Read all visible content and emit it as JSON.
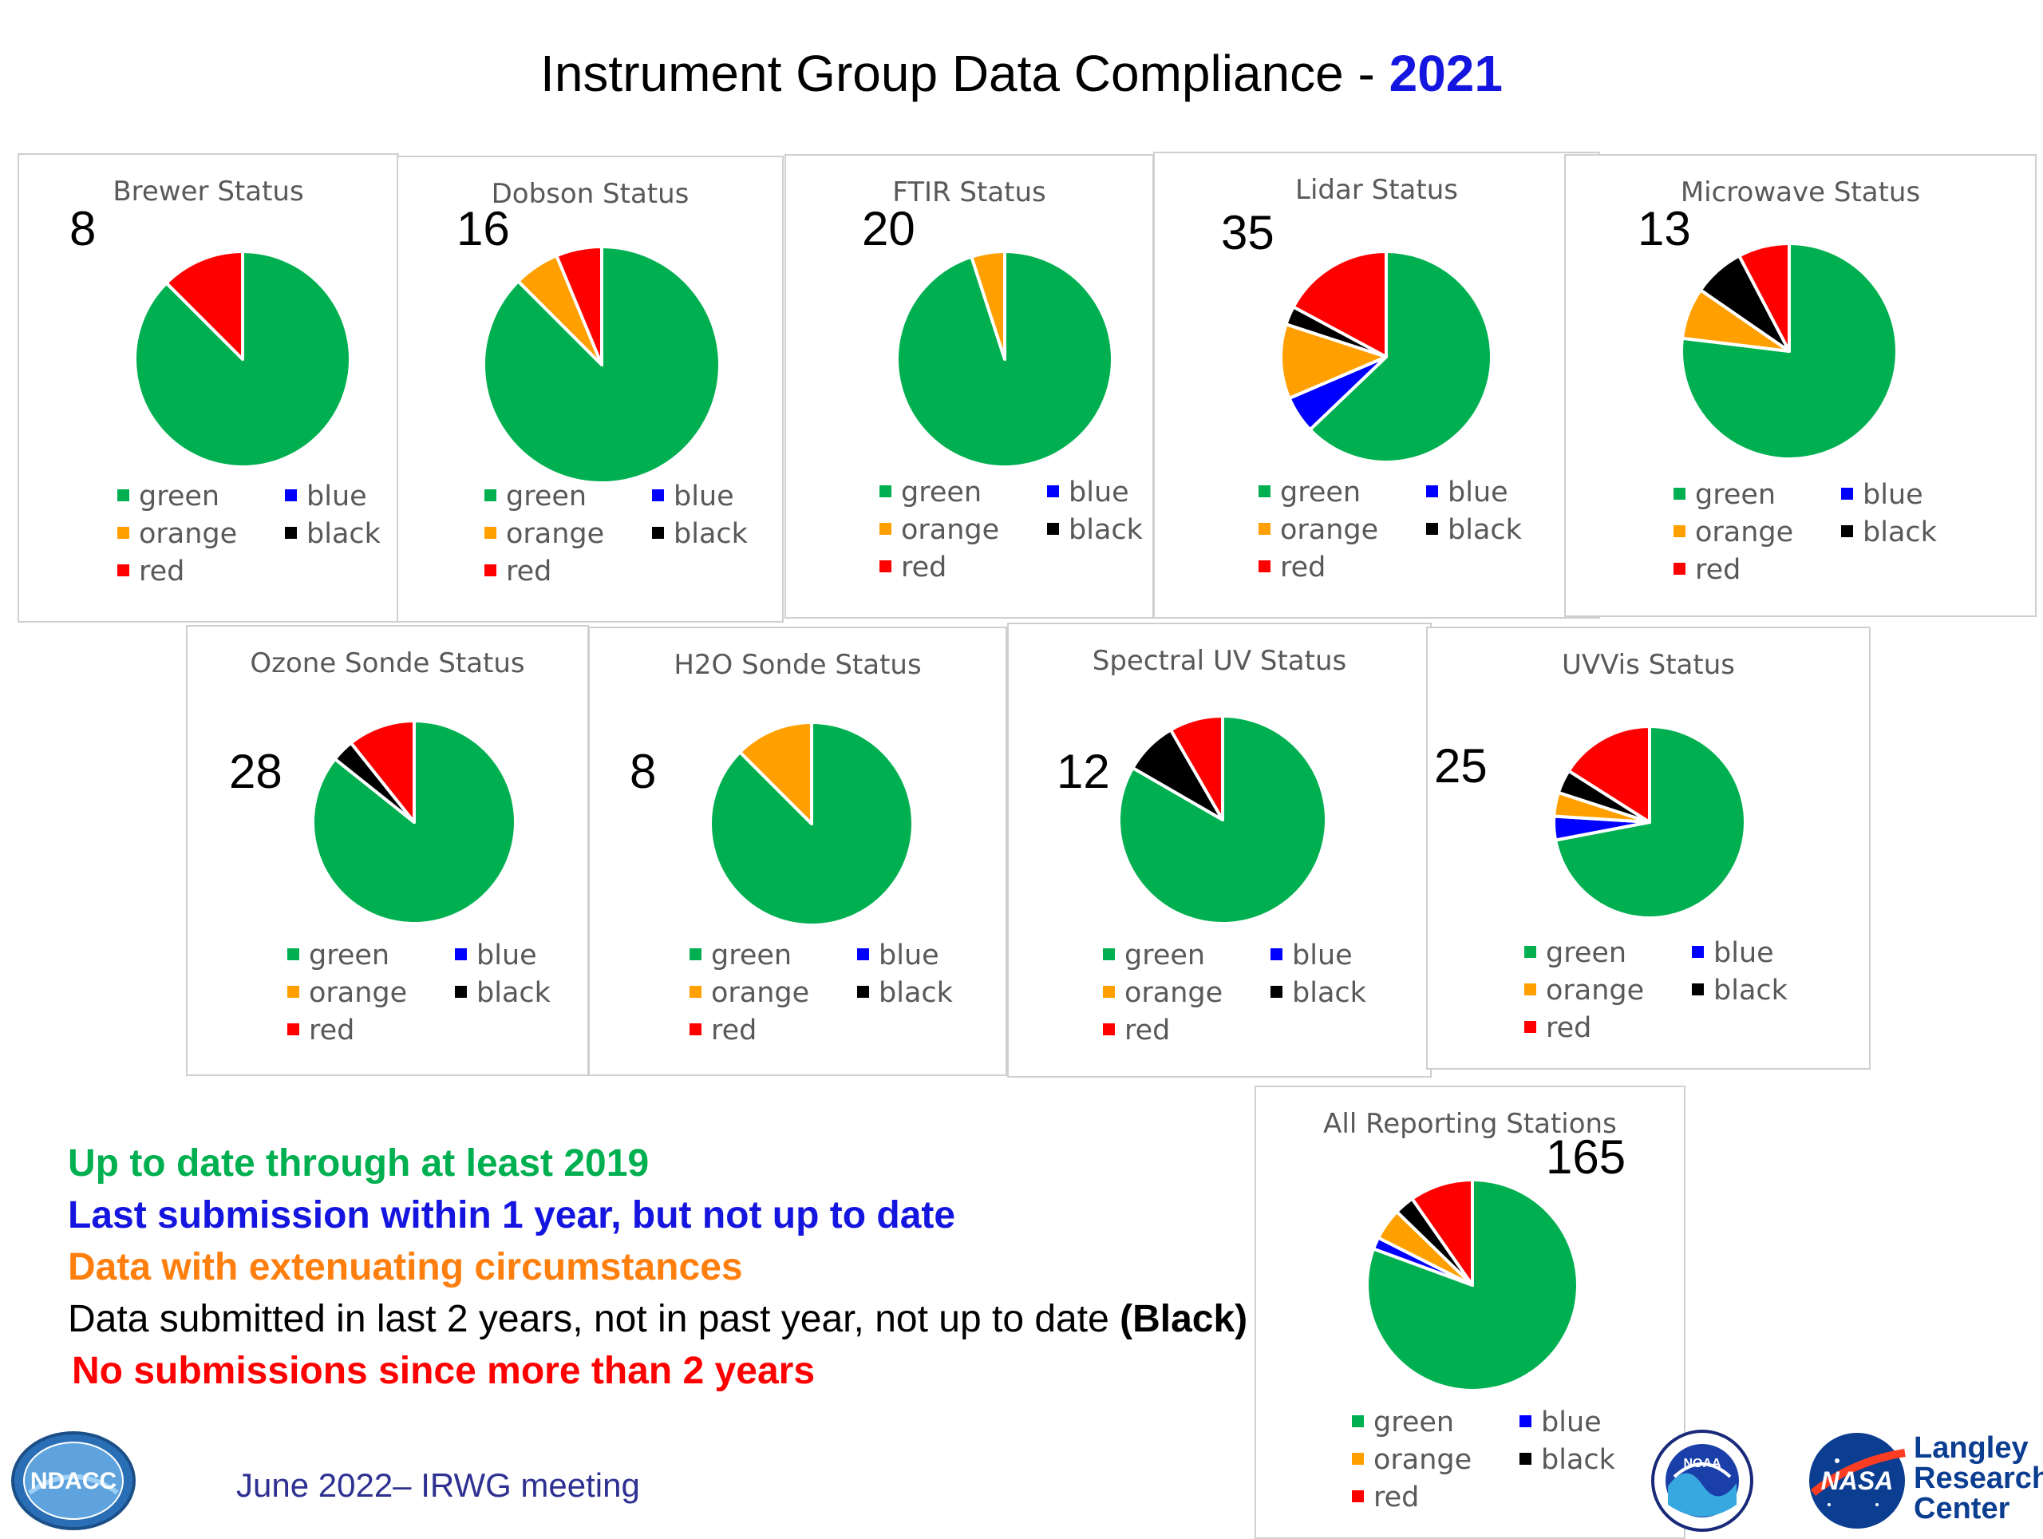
{
  "header": {
    "title": "Instrument Group Data Compliance - ",
    "year": "2021"
  },
  "colors": {
    "green": "#00b050",
    "blue": "#0000ff",
    "orange": "#ffa000",
    "black": "#000000",
    "red": "#ff0000"
  },
  "legend_labels": {
    "green": "green",
    "blue": "blue",
    "orange": "orange",
    "black": "black",
    "red": "red"
  },
  "chart_data": [
    {
      "type": "pie",
      "title": "Brewer Status",
      "count": "8",
      "slices": [
        {
          "label": "green",
          "value": 7
        },
        {
          "label": "blue",
          "value": 0
        },
        {
          "label": "orange",
          "value": 0
        },
        {
          "label": "black",
          "value": 0
        },
        {
          "label": "red",
          "value": 1
        }
      ]
    },
    {
      "type": "pie",
      "title": "Dobson Status",
      "count": "16",
      "slices": [
        {
          "label": "green",
          "value": 14
        },
        {
          "label": "blue",
          "value": 0
        },
        {
          "label": "orange",
          "value": 1
        },
        {
          "label": "black",
          "value": 0
        },
        {
          "label": "red",
          "value": 1
        }
      ]
    },
    {
      "type": "pie",
      "title": "FTIR Status",
      "count": "20",
      "slices": [
        {
          "label": "green",
          "value": 19
        },
        {
          "label": "blue",
          "value": 0
        },
        {
          "label": "orange",
          "value": 1
        },
        {
          "label": "black",
          "value": 0
        },
        {
          "label": "red",
          "value": 0
        }
      ]
    },
    {
      "type": "pie",
      "title": "Lidar Status",
      "count": "35",
      "slices": [
        {
          "label": "green",
          "value": 22
        },
        {
          "label": "blue",
          "value": 2
        },
        {
          "label": "orange",
          "value": 4
        },
        {
          "label": "black",
          "value": 1
        },
        {
          "label": "red",
          "value": 6
        }
      ]
    },
    {
      "type": "pie",
      "title": "Microwave Status",
      "count": "13",
      "slices": [
        {
          "label": "green",
          "value": 10
        },
        {
          "label": "blue",
          "value": 0
        },
        {
          "label": "orange",
          "value": 1
        },
        {
          "label": "black",
          "value": 1
        },
        {
          "label": "red",
          "value": 1
        }
      ]
    },
    {
      "type": "pie",
      "title": "Ozone Sonde Status",
      "count": "28",
      "slices": [
        {
          "label": "green",
          "value": 24
        },
        {
          "label": "blue",
          "value": 0
        },
        {
          "label": "orange",
          "value": 0
        },
        {
          "label": "black",
          "value": 1
        },
        {
          "label": "red",
          "value": 3
        }
      ]
    },
    {
      "type": "pie",
      "title": "H2O Sonde Status",
      "count": "8",
      "slices": [
        {
          "label": "green",
          "value": 7
        },
        {
          "label": "blue",
          "value": 0
        },
        {
          "label": "orange",
          "value": 1
        },
        {
          "label": "black",
          "value": 0
        },
        {
          "label": "red",
          "value": 0
        }
      ]
    },
    {
      "type": "pie",
      "title": "Spectral UV Status",
      "count": "12",
      "slices": [
        {
          "label": "green",
          "value": 10
        },
        {
          "label": "blue",
          "value": 0
        },
        {
          "label": "orange",
          "value": 0
        },
        {
          "label": "black",
          "value": 1
        },
        {
          "label": "red",
          "value": 1
        }
      ]
    },
    {
      "type": "pie",
      "title": "UVVis Status",
      "count": "25",
      "slices": [
        {
          "label": "green",
          "value": 18
        },
        {
          "label": "blue",
          "value": 1
        },
        {
          "label": "orange",
          "value": 1
        },
        {
          "label": "black",
          "value": 1
        },
        {
          "label": "red",
          "value": 4
        }
      ]
    },
    {
      "type": "pie",
      "title": "All Reporting Stations",
      "count": "165",
      "slices": [
        {
          "label": "green",
          "value": 133
        },
        {
          "label": "blue",
          "value": 3
        },
        {
          "label": "orange",
          "value": 8
        },
        {
          "label": "black",
          "value": 5
        },
        {
          "label": "red",
          "value": 16
        }
      ]
    }
  ],
  "notes": [
    {
      "text": "Up to date through at least 2019",
      "color": "#00b050",
      "bold": true
    },
    {
      "text": "Last submission within 1 year, but not up to date",
      "color": "#1515e0",
      "bold": true
    },
    {
      "text": "Data with extenuating circumstances",
      "color": "#ff7f0e",
      "bold": true
    },
    {
      "text": "Data submitted in last 2 years, not in past year, not up to date ",
      "color": "#000000",
      "bold": false,
      "suffix": "(Black)"
    },
    {
      "text": "No submissions since more than 2 years",
      "color": "#ff0000",
      "bold": true
    }
  ],
  "footer": {
    "meeting": "June 2022– IRWG meeting"
  },
  "logos": {
    "ndacc": "NDACC",
    "noaa": "NOAA",
    "nasa": "NASA",
    "langley_line1": "Langley",
    "langley_line2": "Research",
    "langley_line3": "Center"
  }
}
